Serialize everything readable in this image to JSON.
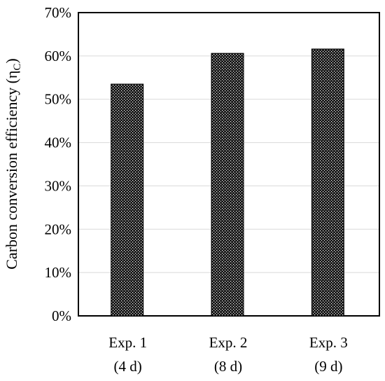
{
  "chart_data": {
    "type": "bar",
    "title": "",
    "xlabel": "",
    "ylabel": "Carbon conversion efficiency (η",
    "ylabel_subscript": "C",
    "ylabel_close": ")",
    "ylim": [
      0,
      70
    ],
    "y_tick_values": [
      0,
      10,
      20,
      30,
      40,
      50,
      60,
      70
    ],
    "y_tick_labels": [
      "0%",
      "10%",
      "20%",
      "30%",
      "40%",
      "50%",
      "60%",
      "70%"
    ],
    "categories": [
      {
        "line1": "Exp. 1",
        "line2": "(4 d)"
      },
      {
        "line1": "Exp. 2",
        "line2": "(8 d)"
      },
      {
        "line1": "Exp. 3",
        "line2": "(9 d)"
      }
    ],
    "values": [
      53.5,
      60.6,
      61.6
    ],
    "grid": true,
    "legend": "none",
    "bar_pattern": "dotted",
    "colors": {
      "bar_fill": "#1a1a1a",
      "bar_dots": "#ffffff",
      "grid": "#d9d9d9",
      "axis": "#000000"
    }
  }
}
